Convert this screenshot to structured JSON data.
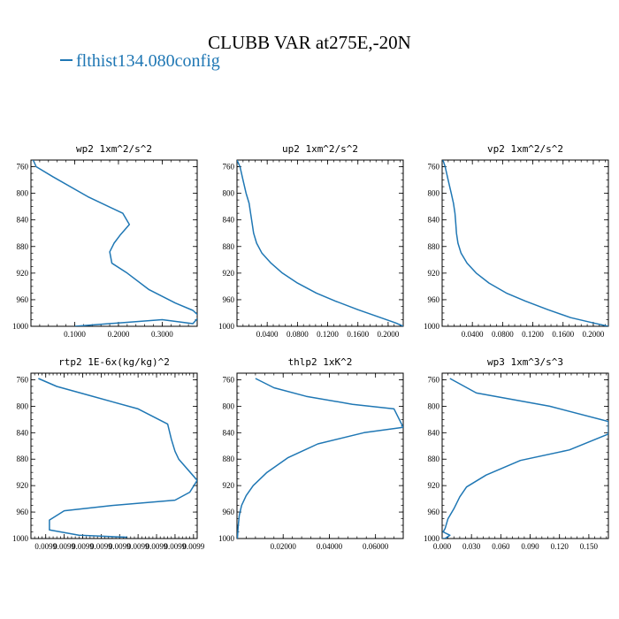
{
  "figure": {
    "title": "CLUBB VAR at275E,-20N",
    "legend_label": "flthist134.080config",
    "line_color": "#1f77b4"
  },
  "chart_data": [
    {
      "type": "line",
      "title": "wp2   1xm^2/s^2",
      "xlim": [
        0.0,
        0.38
      ],
      "ylim": [
        1000,
        750
      ],
      "xticks": [
        0.1,
        0.2,
        0.3
      ],
      "xtick_labels": [
        "0.1000",
        "0.2000",
        "0.3000"
      ],
      "yticks": [
        760,
        800,
        840,
        880,
        920,
        960,
        1000
      ],
      "ytick_labels": [
        "760",
        "800",
        "840",
        "880",
        "920",
        "960",
        "1000"
      ],
      "series": [
        {
          "name": "flthist134.080config",
          "x": [
            0.005,
            0.012,
            0.05,
            0.13,
            0.21,
            0.225,
            0.205,
            0.19,
            0.18,
            0.185,
            0.22,
            0.27,
            0.33,
            0.37,
            0.385,
            0.37,
            0.3,
            0.2,
            0.1
          ],
          "y": [
            750,
            760,
            775,
            805,
            830,
            847,
            862,
            875,
            888,
            905,
            920,
            945,
            965,
            976,
            985,
            996,
            990,
            995,
            1000
          ]
        }
      ]
    },
    {
      "type": "line",
      "title": "up2   1xm^2/s^2",
      "xlim": [
        0.0,
        0.22
      ],
      "ylim": [
        1000,
        750
      ],
      "xticks": [
        0.04,
        0.08,
        0.12,
        0.16,
        0.2
      ],
      "xtick_labels": [
        "0.0400",
        "0.0800",
        "0.1200",
        "0.1600",
        "0.2000"
      ],
      "yticks": [
        760,
        800,
        840,
        880,
        920,
        960,
        1000
      ],
      "ytick_labels": [
        "760",
        "800",
        "840",
        "880",
        "920",
        "960",
        "1000"
      ],
      "series": [
        {
          "name": "flthist134.080config",
          "x": [
            0.0,
            0.004,
            0.008,
            0.012,
            0.016,
            0.018,
            0.02,
            0.022,
            0.026,
            0.033,
            0.045,
            0.06,
            0.08,
            0.105,
            0.13,
            0.16,
            0.19,
            0.21,
            0.22
          ],
          "y": [
            750,
            760,
            780,
            800,
            815,
            830,
            845,
            860,
            875,
            890,
            905,
            920,
            935,
            950,
            962,
            975,
            987,
            995,
            1000
          ]
        }
      ]
    },
    {
      "type": "line",
      "title": "vp2   1xm^2/s^2",
      "xlim": [
        0.0,
        0.22
      ],
      "ylim": [
        1000,
        750
      ],
      "xticks": [
        0.04,
        0.08,
        0.12,
        0.16,
        0.2
      ],
      "xtick_labels": [
        "0.0400",
        "0.0800",
        "0.1200",
        "0.1600",
        "0.2000"
      ],
      "yticks": [
        760,
        800,
        840,
        880,
        920,
        960,
        1000
      ],
      "ytick_labels": [
        "760",
        "800",
        "840",
        "880",
        "920",
        "960",
        "1000"
      ],
      "series": [
        {
          "name": "flthist134.080config",
          "x": [
            0.001,
            0.004,
            0.008,
            0.012,
            0.015,
            0.017,
            0.018,
            0.019,
            0.021,
            0.025,
            0.033,
            0.045,
            0.062,
            0.085,
            0.11,
            0.14,
            0.17,
            0.2,
            0.22
          ],
          "y": [
            750,
            760,
            780,
            800,
            815,
            830,
            845,
            860,
            875,
            890,
            905,
            920,
            935,
            950,
            962,
            975,
            987,
            995,
            1000
          ]
        }
      ]
    },
    {
      "type": "line",
      "title": "rtp2   1E-6x(kg/kg)^2",
      "xlim": [
        0.0099956,
        0.0100001
      ],
      "ylim": [
        1000,
        750
      ],
      "xticks": [
        0.009996,
        0.0099965,
        0.009997,
        0.0099975,
        0.009998,
        0.0099985,
        0.009999,
        0.0099995,
        0.01
      ],
      "xtick_labels": [
        "0.0099",
        "0.0099",
        "0.0099",
        "0.0099",
        "0.0099",
        "0.0099",
        "0.0099",
        "0.0099",
        "0.0099"
      ],
      "yticks": [
        760,
        800,
        840,
        880,
        920,
        960,
        1000
      ],
      "ytick_labels": [
        "760",
        "800",
        "840",
        "880",
        "920",
        "960",
        "1000"
      ],
      "series": [
        {
          "name": "flthist134.080config",
          "x": [
            0.0099958,
            0.0099963,
            0.0099972,
            0.0099985,
            0.0099993,
            0.0099994,
            0.0099995,
            0.0099996,
            0.0100001,
            0.0099999,
            0.0099995,
            0.0099978,
            0.0099965,
            0.0099961,
            0.0099961,
            0.0099969,
            0.0099982
          ],
          "y": [
            758,
            770,
            784,
            804,
            827,
            850,
            868,
            880,
            912,
            930,
            942,
            950,
            958,
            972,
            987,
            995,
            998
          ]
        }
      ]
    },
    {
      "type": "line",
      "title": "thlp2   1xK^2",
      "xlim": [
        0.0,
        0.072
      ],
      "ylim": [
        1000,
        750
      ],
      "xticks": [
        0.02,
        0.04,
        0.06
      ],
      "xtick_labels": [
        "0.02000",
        "0.04000",
        "0.06000"
      ],
      "yticks": [
        760,
        800,
        840,
        880,
        920,
        960,
        1000
      ],
      "ytick_labels": [
        "760",
        "800",
        "840",
        "880",
        "920",
        "960",
        "1000"
      ],
      "series": [
        {
          "name": "flthist134.080config",
          "x": [
            0.008,
            0.016,
            0.03,
            0.05,
            0.068,
            0.072,
            0.055,
            0.035,
            0.022,
            0.013,
            0.007,
            0.004,
            0.002,
            0.001,
            0.0005,
            0.0002
          ],
          "y": [
            758,
            772,
            785,
            797,
            804,
            832,
            840,
            857,
            878,
            900,
            920,
            935,
            950,
            965,
            982,
            1000
          ]
        }
      ]
    },
    {
      "type": "line",
      "title": "wp3   1xm^3/s^3",
      "xlim": [
        0.0,
        0.17
      ],
      "ylim": [
        1000,
        750
      ],
      "xticks": [
        0.0,
        0.03,
        0.06,
        0.09,
        0.12,
        0.15
      ],
      "xtick_labels": [
        "0.000",
        "0.030",
        "0.060",
        "0.090",
        "0.120",
        "0.150"
      ],
      "yticks": [
        760,
        800,
        840,
        880,
        920,
        960,
        1000
      ],
      "ytick_labels": [
        "760",
        "800",
        "840",
        "880",
        "920",
        "960",
        "1000"
      ],
      "series": [
        {
          "name": "flthist134.080config",
          "x": [
            0.008,
            0.035,
            0.11,
            0.17,
            0.17,
            0.13,
            0.08,
            0.045,
            0.025,
            0.018,
            0.012,
            0.006,
            0.003,
            0.001,
            0.008,
            0.003,
            0.0
          ],
          "y": [
            758,
            780,
            800,
            823,
            842,
            866,
            882,
            904,
            922,
            937,
            955,
            970,
            985,
            990,
            995,
            1000,
            1000
          ]
        }
      ]
    }
  ]
}
